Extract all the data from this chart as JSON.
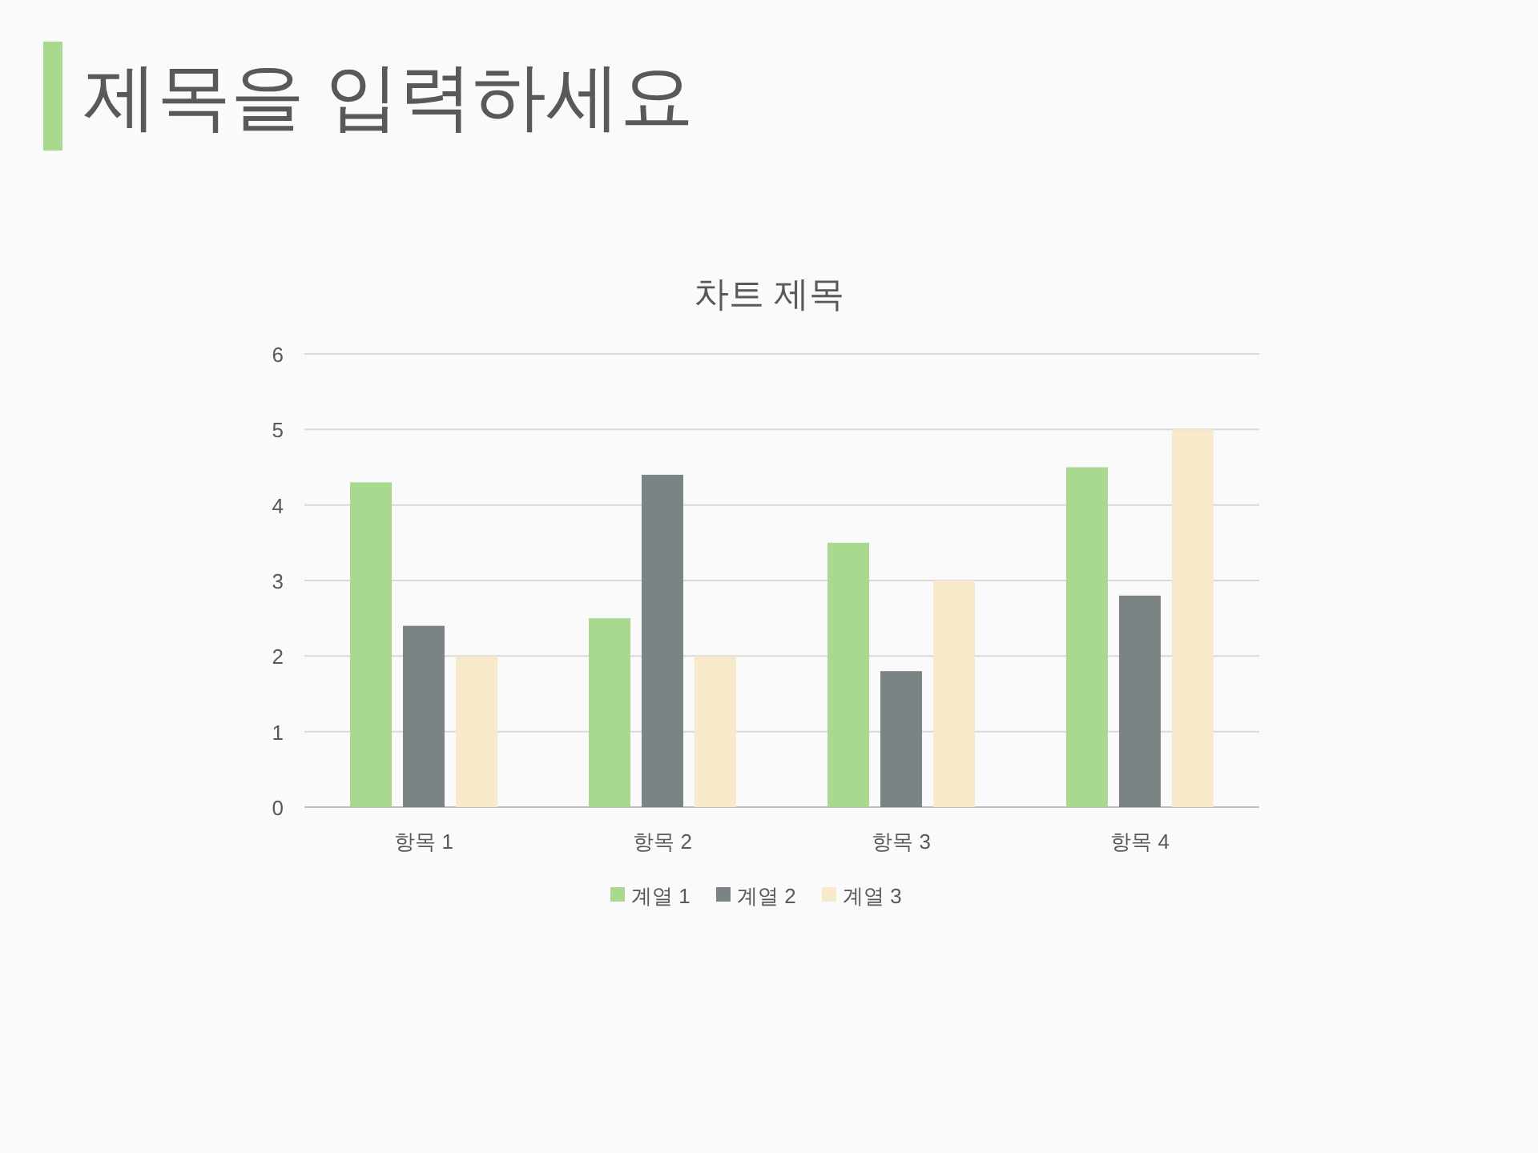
{
  "chart_data": {
    "type": "bar",
    "title": "제목을 입력하세요",
    "subtitle": "차트 제목",
    "categories": [
      "항목 1",
      "항목 2",
      "항목 3",
      "항목 4"
    ],
    "series": [
      {
        "name": "계열 1",
        "color": "#a9d98f",
        "values": [
          4.3,
          2.5,
          3.5,
          4.5
        ]
      },
      {
        "name": "계열 2",
        "color": "#7b8385",
        "values": [
          2.4,
          4.4,
          1.8,
          2.8
        ]
      },
      {
        "name": "계열 3",
        "color": "#f7e9c9",
        "values": [
          2,
          2,
          3,
          5
        ]
      }
    ],
    "ylim": [
      0,
      6
    ],
    "yticks": [
      0,
      1,
      2,
      3,
      4,
      5,
      6
    ],
    "grid": "y",
    "legend": "bottom"
  }
}
